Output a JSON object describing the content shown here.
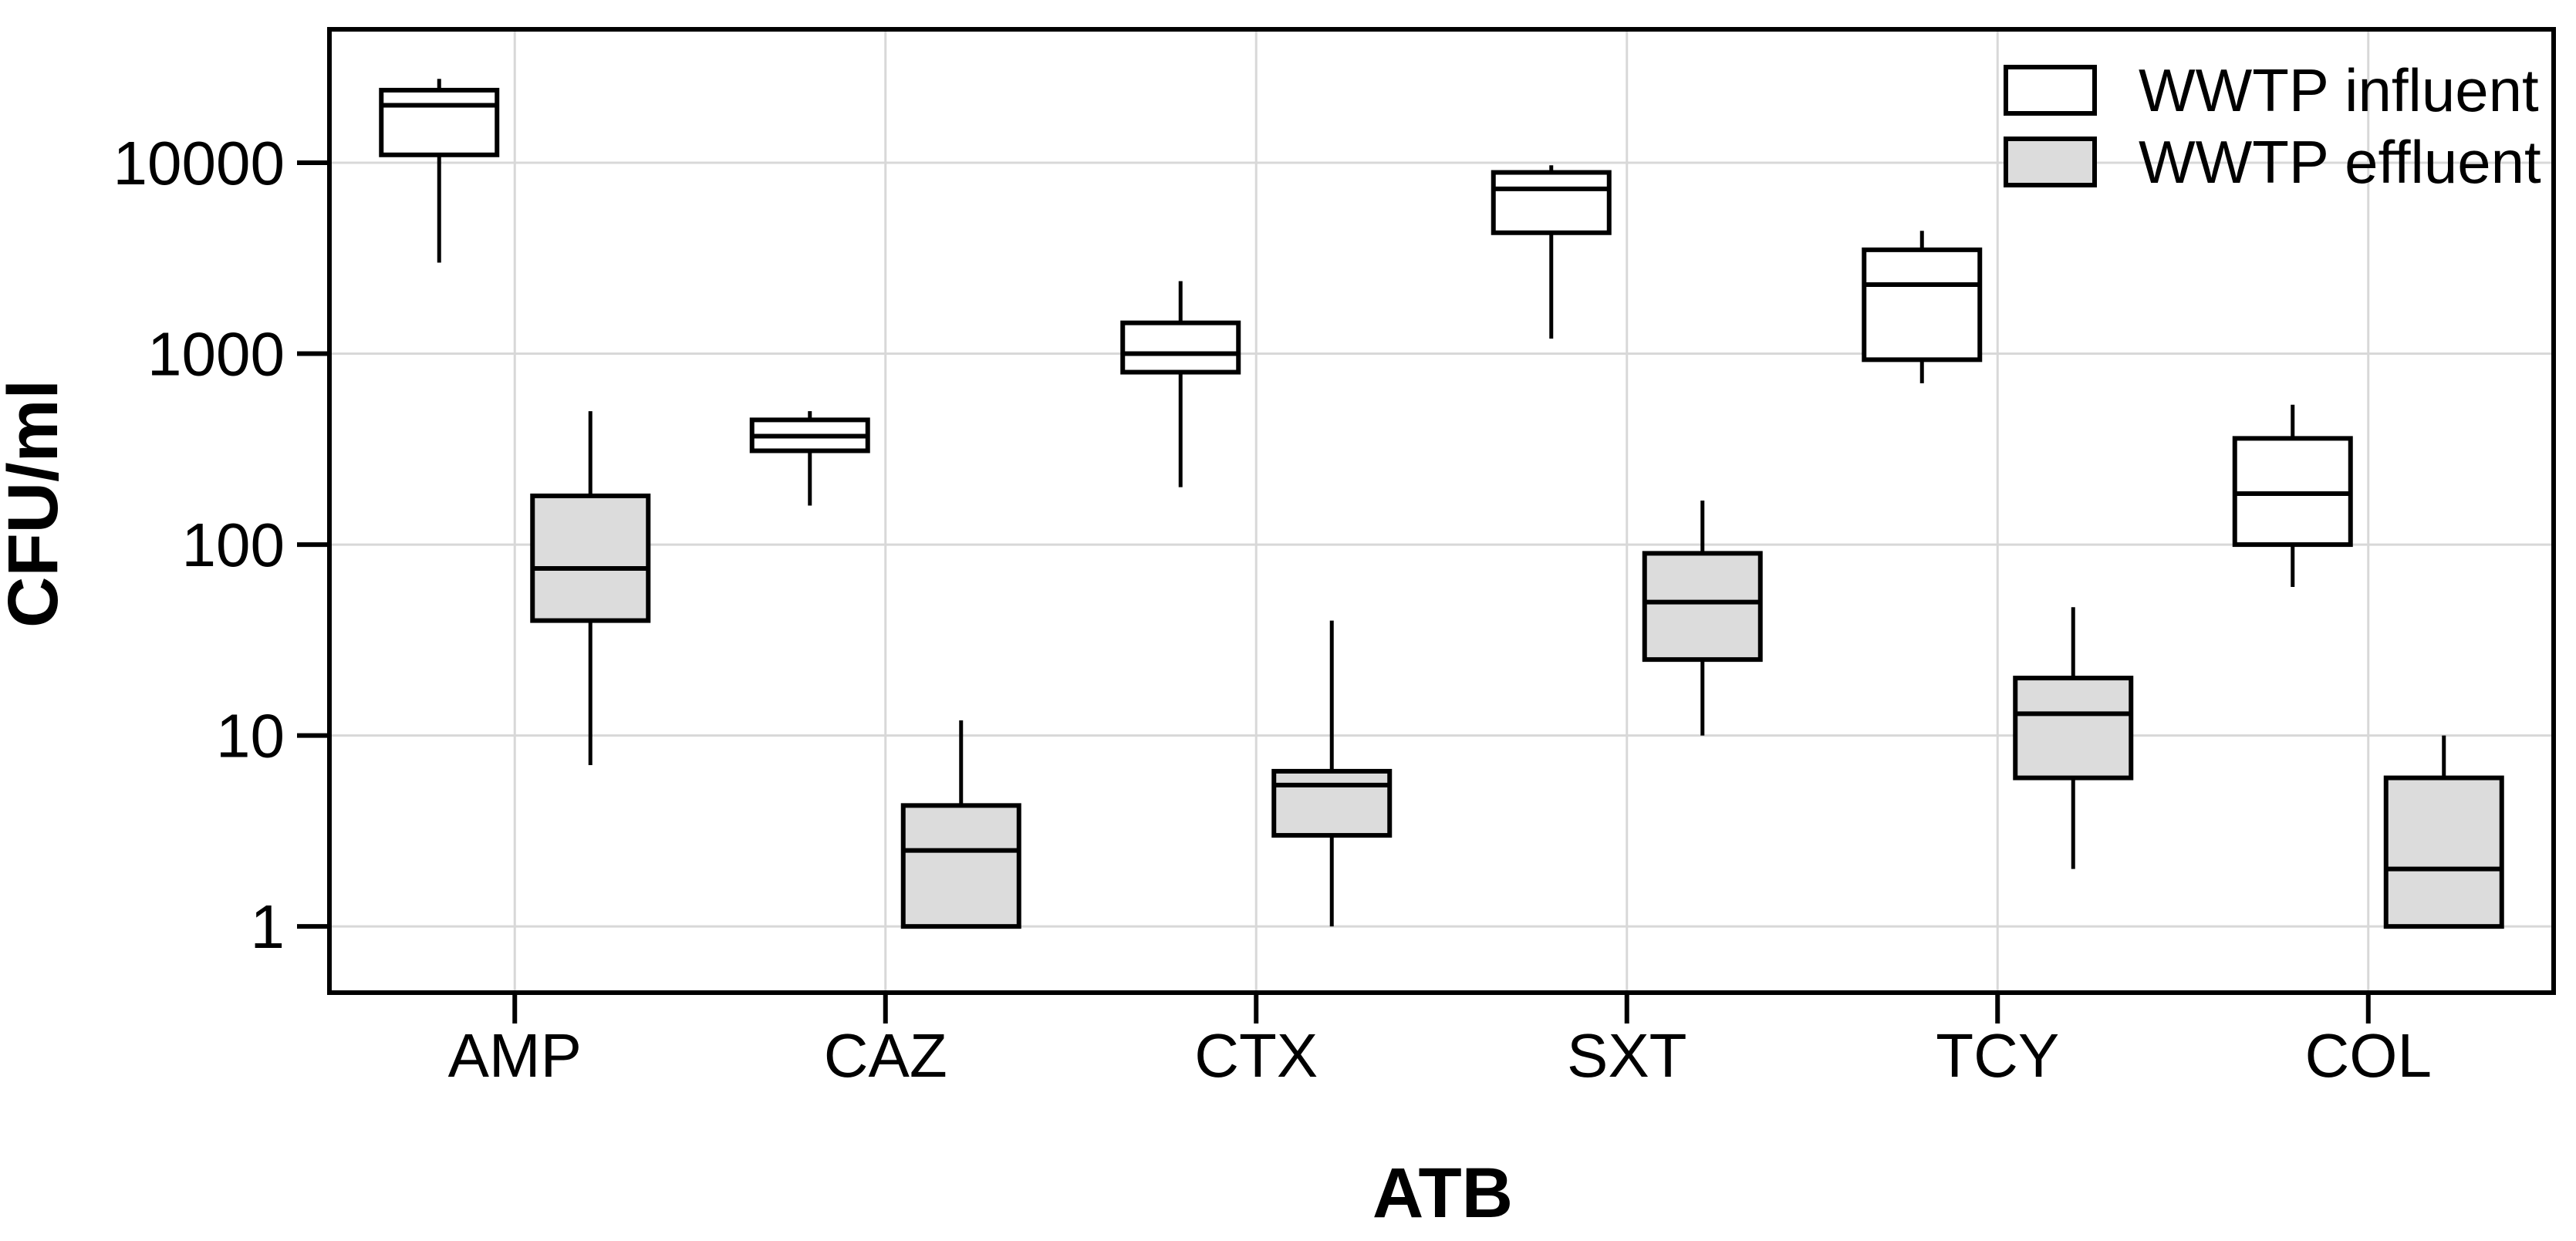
{
  "figure": {
    "background": "#ffffff",
    "frame_color": "#000000",
    "grid_color": "#d8d8d8",
    "text_color": "#000000"
  },
  "chart_data": {
    "type": "boxplot",
    "title": "",
    "xlabel": "ATB",
    "ylabel": "CFU/ml",
    "y_scale": "log10",
    "y_range": [
      0.45,
      50000
    ],
    "y_ticks": [
      1,
      10,
      100,
      1000,
      10000
    ],
    "y_tick_labels": [
      "1",
      "10",
      "100",
      "1000",
      "10000"
    ],
    "grid": "horizontal-decades and vertical-category, light gray",
    "legend_position": "top-right-inside",
    "categories": [
      "AMP",
      "CAZ",
      "CTX",
      "SXT",
      "TCY",
      "COL"
    ],
    "series": [
      {
        "name": "WWTP influent",
        "fill": "#ffffff",
        "stroke": "#000000",
        "boxes": [
          {
            "category": "AMP",
            "min": 3000,
            "q1": 11000,
            "median": 20000,
            "q3": 24000,
            "max": 27500
          },
          {
            "category": "CAZ",
            "min": 160,
            "q1": 310,
            "median": 370,
            "q3": 450,
            "max": 500
          },
          {
            "category": "CTX",
            "min": 200,
            "q1": 800,
            "median": 1000,
            "q3": 1450,
            "max": 2400
          },
          {
            "category": "SXT",
            "min": 1200,
            "q1": 4300,
            "median": 7300,
            "q3": 8900,
            "max": 9700
          },
          {
            "category": "TCY",
            "min": 700,
            "q1": 930,
            "median": 2300,
            "q3": 3500,
            "max": 4400
          },
          {
            "category": "COL",
            "min": 60,
            "q1": 100,
            "median": 185,
            "q3": 360,
            "max": 540
          }
        ]
      },
      {
        "name": "WWTP effluent",
        "fill": "#dcdcdc",
        "stroke": "#000000",
        "boxes": [
          {
            "category": "AMP",
            "min": 7,
            "q1": 40,
            "median": 75,
            "q3": 180,
            "max": 500
          },
          {
            "category": "CAZ",
            "min": 1,
            "q1": 1,
            "median": 2.5,
            "q3": 4.3,
            "max": 12
          },
          {
            "category": "CTX",
            "min": 1,
            "q1": 3,
            "median": 5.5,
            "q3": 6.5,
            "max": 40
          },
          {
            "category": "SXT",
            "min": 10,
            "q1": 25,
            "median": 50,
            "q3": 90,
            "max": 170
          },
          {
            "category": "TCY",
            "min": 2,
            "q1": 6,
            "median": 13,
            "q3": 20,
            "max": 47
          },
          {
            "category": "COL",
            "min": 1,
            "q1": 1,
            "median": 2,
            "q3": 6,
            "max": 10
          }
        ]
      }
    ]
  }
}
